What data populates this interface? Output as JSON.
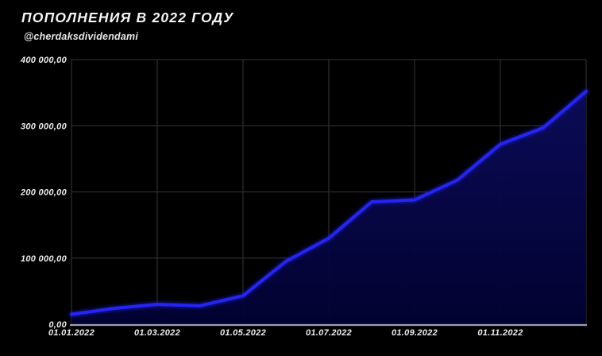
{
  "header": {
    "title": "ПОПОЛНЕНИЯ В 2022 ГОДУ",
    "subtitle": "@cherdaksdividendami"
  },
  "colors": {
    "background": "#000000",
    "line": "#2525f2",
    "line_glow": "#2222ff",
    "area_top": "#0b0b5a",
    "area_bottom": "#020233",
    "gridline": "#2e2e2e",
    "axis": "#9c9cb2",
    "text": "#ededed"
  },
  "chart_data": {
    "type": "area",
    "title": "ПОПОЛНЕНИЯ В 2022 ГОДУ",
    "subtitle": "@cherdaksdividendami",
    "xlabel": "",
    "ylabel": "",
    "x": [
      "01.01.2022",
      "01.02.2022",
      "01.03.2022",
      "01.04.2022",
      "01.05.2022",
      "01.06.2022",
      "01.07.2022",
      "01.08.2022",
      "01.09.2022",
      "01.10.2022",
      "01.11.2022",
      "01.12.2022",
      "01.01.2023"
    ],
    "values": [
      15000,
      24000,
      30000,
      28000,
      43000,
      95000,
      130000,
      185000,
      188000,
      218000,
      272000,
      297000,
      352000
    ],
    "ylim": [
      0,
      400000
    ],
    "y_ticks": [
      {
        "value": 0,
        "label": "0,00"
      },
      {
        "value": 100000,
        "label": "100 000,00"
      },
      {
        "value": 200000,
        "label": "200 000,00"
      },
      {
        "value": 300000,
        "label": "300 000,00"
      },
      {
        "value": 400000,
        "label": "400 000,00"
      }
    ],
    "x_tick_labels": [
      "01.01.2022",
      "01.03.2022",
      "01.05.2022",
      "01.07.2022",
      "01.09.2022",
      "01.11.2022"
    ],
    "x_tick_month_index": [
      0,
      2,
      4,
      6,
      8,
      10
    ],
    "grid": true,
    "legend": false
  }
}
